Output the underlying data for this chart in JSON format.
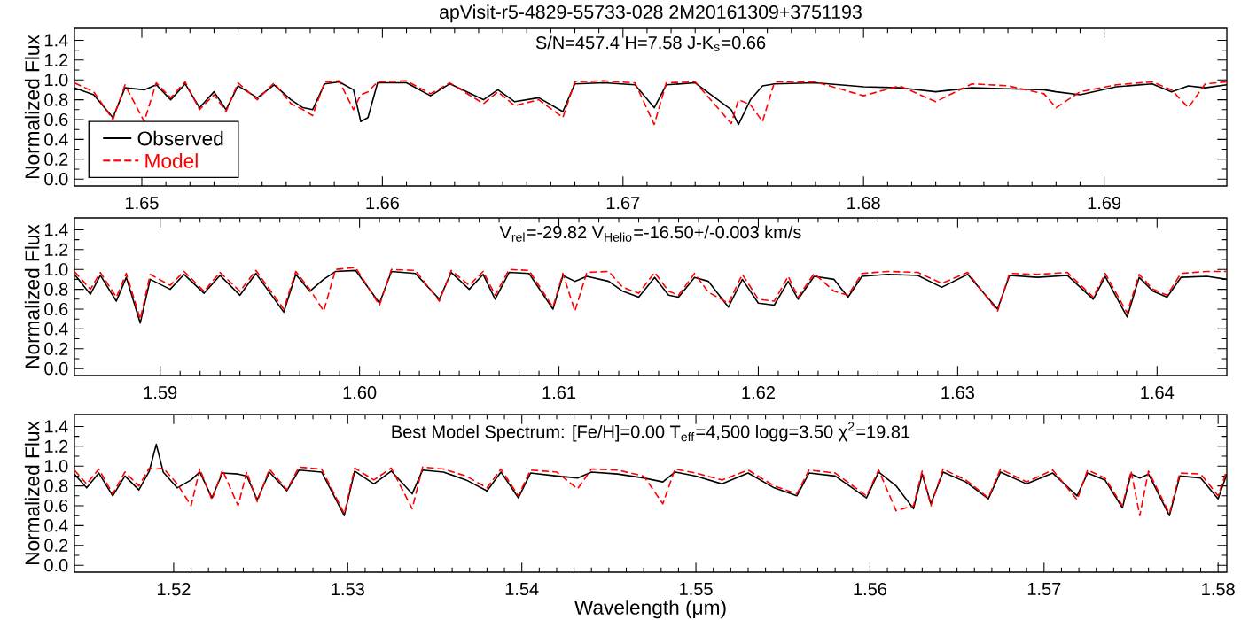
{
  "chart_data": [
    {
      "type": "line",
      "title": "apVisit-r5-4829-55733-028  2M20161309+3751193",
      "ylabel": "Normalized Flux",
      "annotations": [
        "S/N=457.4 H=7.58 J-K$_{s}$=0.66"
      ],
      "legend": "bottom left",
      "xlim": [
        1.6472,
        1.6951
      ],
      "xticks": [
        1.65,
        1.66,
        1.67,
        1.68,
        1.69
      ],
      "ylim": [
        -0.07,
        1.52
      ],
      "yticks": [
        {
          "value": 0,
          "label": "0.0"
        },
        {
          "value": 0.2,
          "label": "0.2"
        },
        {
          "value": 0.4,
          "label": "0.4"
        },
        {
          "value": 0.6,
          "label": "0.6"
        },
        {
          "value": 0.8,
          "label": "0.8"
        },
        {
          "value": 1.0,
          "label": "1.0"
        },
        {
          "value": 1.2,
          "label": "1.2"
        },
        {
          "value": 1.4,
          "label": "1.4"
        }
      ],
      "x": [
        1.6472,
        1.648,
        1.6488,
        1.6493,
        1.6501,
        1.6506,
        1.6512,
        1.6518,
        1.6524,
        1.653,
        1.6535,
        1.654,
        1.6548,
        1.6555,
        1.6562,
        1.6567,
        1.6571,
        1.6576,
        1.6582,
        1.6588,
        1.6591,
        1.6594,
        1.6598,
        1.661,
        1.662,
        1.6628,
        1.6642,
        1.6648,
        1.6655,
        1.6665,
        1.6675,
        1.668,
        1.6692,
        1.6705,
        1.6713,
        1.6718,
        1.673,
        1.6745,
        1.6748,
        1.6753,
        1.6758,
        1.6763,
        1.678,
        1.68,
        1.6815,
        1.683,
        1.6845,
        1.686,
        1.6875,
        1.688,
        1.689,
        1.6905,
        1.692,
        1.6928,
        1.6935,
        1.6942,
        1.6951
      ],
      "series": [
        {
          "name": "Observed",
          "color": "#000000",
          "line_style": "solid",
          "values": [
            0.92,
            0.85,
            0.62,
            0.92,
            0.9,
            0.95,
            0.8,
            0.96,
            0.72,
            0.88,
            0.7,
            0.94,
            0.82,
            0.95,
            0.8,
            0.72,
            0.7,
            0.96,
            0.98,
            0.9,
            0.58,
            0.62,
            0.97,
            0.97,
            0.84,
            0.96,
            0.8,
            0.9,
            0.78,
            0.82,
            0.68,
            0.96,
            0.97,
            0.95,
            0.72,
            0.95,
            0.97,
            0.7,
            0.55,
            0.8,
            0.94,
            0.96,
            0.97,
            0.93,
            0.92,
            0.88,
            0.92,
            0.91,
            0.9,
            0.88,
            0.85,
            0.93,
            0.96,
            0.88,
            0.94,
            0.92,
            0.95
          ]
        },
        {
          "name": "Model",
          "color": "#ff0000",
          "line_style": "dashed",
          "values": [
            0.97,
            0.88,
            0.6,
            0.95,
            0.58,
            0.97,
            0.82,
            0.98,
            0.7,
            0.85,
            0.68,
            0.97,
            0.8,
            0.97,
            0.76,
            0.7,
            0.64,
            0.98,
            0.99,
            0.7,
            0.85,
            0.88,
            0.98,
            0.99,
            0.86,
            0.97,
            0.76,
            0.88,
            0.74,
            0.8,
            0.62,
            0.98,
            0.99,
            0.97,
            0.55,
            0.97,
            0.98,
            0.56,
            0.8,
            0.75,
            0.58,
            0.98,
            0.98,
            0.84,
            0.94,
            0.78,
            0.96,
            0.94,
            0.86,
            0.72,
            0.88,
            0.95,
            0.98,
            0.9,
            0.72,
            0.96,
            0.98
          ]
        }
      ]
    },
    {
      "type": "line",
      "ylabel": "Normalized Flux",
      "annotations": [
        "V$_{rel}$=-29.82  V$_{Helio}$=-16.50+/-0.003 km/s"
      ],
      "xlim": [
        1.5857,
        1.6435
      ],
      "xticks": [
        1.59,
        {
          "value": 1.6,
          "label": "1.60"
        },
        1.61,
        1.62,
        1.63,
        1.64
      ],
      "ylim": [
        -0.07,
        1.52
      ],
      "yticks": [
        {
          "value": 0,
          "label": "0.0"
        },
        {
          "value": 0.2,
          "label": "0.2"
        },
        {
          "value": 0.4,
          "label": "0.4"
        },
        {
          "value": 0.6,
          "label": "0.6"
        },
        {
          "value": 0.8,
          "label": "0.8"
        },
        {
          "value": 1.0,
          "label": "1.0"
        },
        {
          "value": 1.2,
          "label": "1.2"
        },
        {
          "value": 1.4,
          "label": "1.4"
        }
      ],
      "x": [
        1.5857,
        1.5865,
        1.587,
        1.5878,
        1.5883,
        1.589,
        1.5895,
        1.5905,
        1.5912,
        1.5922,
        1.593,
        1.594,
        1.5948,
        1.5962,
        1.5968,
        1.5975,
        1.5982,
        1.5988,
        1.5998,
        1.601,
        1.6016,
        1.6028,
        1.604,
        1.6046,
        1.6055,
        1.6062,
        1.6068,
        1.6075,
        1.6085,
        1.6097,
        1.6102,
        1.6108,
        1.6114,
        1.6125,
        1.6132,
        1.614,
        1.6148,
        1.6155,
        1.616,
        1.6168,
        1.6175,
        1.6185,
        1.6192,
        1.62,
        1.6208,
        1.6215,
        1.622,
        1.6228,
        1.6238,
        1.6245,
        1.6252,
        1.6265,
        1.628,
        1.6292,
        1.6305,
        1.632,
        1.6326,
        1.634,
        1.6355,
        1.6368,
        1.6374,
        1.6385,
        1.6391,
        1.6398,
        1.6405,
        1.6412,
        1.6425,
        1.6435
      ],
      "series": [
        {
          "color": "#000000",
          "line_style": "solid",
          "values": [
            0.95,
            0.75,
            0.94,
            0.68,
            0.92,
            0.46,
            0.9,
            0.8,
            0.95,
            0.76,
            0.94,
            0.74,
            0.96,
            0.57,
            0.95,
            0.78,
            0.9,
            0.98,
            0.99,
            0.66,
            0.98,
            0.96,
            0.7,
            0.97,
            0.8,
            0.95,
            0.7,
            0.97,
            0.96,
            0.6,
            0.94,
            0.88,
            0.93,
            0.88,
            0.78,
            0.72,
            0.92,
            0.74,
            0.72,
            0.92,
            0.88,
            0.62,
            0.9,
            0.66,
            0.64,
            0.88,
            0.7,
            0.93,
            0.9,
            0.72,
            0.93,
            0.95,
            0.94,
            0.82,
            0.95,
            0.6,
            0.94,
            0.92,
            0.94,
            0.7,
            0.93,
            0.52,
            0.92,
            0.78,
            0.72,
            0.92,
            0.93,
            0.9
          ]
        },
        {
          "color": "#ff0000",
          "line_style": "dashed",
          "values": [
            0.98,
            0.8,
            0.97,
            0.72,
            0.96,
            0.5,
            0.95,
            0.84,
            0.98,
            0.78,
            0.97,
            0.78,
            0.99,
            0.6,
            0.98,
            0.8,
            0.58,
            1.0,
            1.02,
            0.64,
            1.0,
            0.99,
            0.68,
            0.99,
            0.84,
            0.98,
            0.74,
            1.0,
            0.99,
            0.62,
            0.96,
            0.58,
            0.97,
            0.98,
            0.82,
            0.76,
            0.97,
            0.78,
            0.74,
            0.96,
            0.77,
            0.66,
            0.95,
            0.7,
            0.68,
            0.93,
            0.72,
            0.96,
            0.78,
            0.74,
            0.96,
            0.98,
            0.97,
            0.86,
            0.97,
            0.58,
            0.96,
            0.95,
            0.97,
            0.72,
            0.96,
            0.56,
            0.95,
            0.8,
            0.74,
            0.96,
            0.98,
            0.98
          ]
        }
      ]
    },
    {
      "type": "line",
      "xlabel": "Wavelength (μm)",
      "ylabel": "Normalized Flux",
      "annotations": [
        "Best Model Spectrum: [Fe/H]=0.00 T$_{eff}$=4,500 logg=3.50  χ$^{2}$=19.81"
      ],
      "xlim": [
        1.5143,
        1.5805
      ],
      "xticks": [
        1.52,
        1.53,
        1.54,
        1.55,
        1.56,
        1.57,
        1.58
      ],
      "ylim": [
        -0.07,
        1.52
      ],
      "yticks": [
        {
          "value": 0,
          "label": "0.0"
        },
        {
          "value": 0.2,
          "label": "0.2"
        },
        {
          "value": 0.4,
          "label": "0.4"
        },
        {
          "value": 0.6,
          "label": "0.6"
        },
        {
          "value": 0.8,
          "label": "0.8"
        },
        {
          "value": 1.0,
          "label": "1.0"
        },
        {
          "value": 1.2,
          "label": "1.2"
        },
        {
          "value": 1.4,
          "label": "1.4"
        }
      ],
      "x": [
        1.5143,
        1.515,
        1.5157,
        1.5165,
        1.5172,
        1.518,
        1.5186,
        1.519,
        1.5194,
        1.5202,
        1.521,
        1.5215,
        1.5222,
        1.5228,
        1.5237,
        1.5242,
        1.5248,
        1.5255,
        1.5265,
        1.5272,
        1.5285,
        1.5298,
        1.5304,
        1.5315,
        1.5325,
        1.5337,
        1.5343,
        1.5355,
        1.5368,
        1.538,
        1.5388,
        1.5398,
        1.5405,
        1.542,
        1.5432,
        1.544,
        1.5455,
        1.547,
        1.5481,
        1.5488,
        1.55,
        1.5515,
        1.553,
        1.5545,
        1.5558,
        1.5565,
        1.558,
        1.5598,
        1.5605,
        1.5615,
        1.5625,
        1.563,
        1.5635,
        1.5642,
        1.5655,
        1.5668,
        1.5675,
        1.569,
        1.5705,
        1.5719,
        1.5725,
        1.5735,
        1.5745,
        1.575,
        1.5755,
        1.576,
        1.5772,
        1.5778,
        1.579,
        1.58,
        1.5805
      ],
      "series": [
        {
          "color": "#000000",
          "line_style": "solid",
          "values": [
            0.92,
            0.78,
            0.93,
            0.7,
            0.9,
            0.76,
            0.95,
            1.22,
            0.94,
            0.78,
            0.86,
            0.94,
            0.68,
            0.93,
            0.92,
            0.9,
            0.66,
            0.94,
            0.75,
            0.96,
            0.94,
            0.5,
            0.95,
            0.82,
            0.95,
            0.72,
            0.96,
            0.94,
            0.86,
            0.75,
            0.94,
            0.68,
            0.93,
            0.9,
            0.88,
            0.94,
            0.92,
            0.88,
            0.84,
            0.94,
            0.9,
            0.82,
            0.93,
            0.78,
            0.7,
            0.93,
            0.9,
            0.68,
            0.94,
            0.8,
            0.57,
            0.92,
            0.62,
            0.94,
            0.84,
            0.67,
            0.94,
            0.82,
            0.93,
            0.7,
            0.93,
            0.86,
            0.58,
            0.92,
            0.88,
            0.92,
            0.5,
            0.9,
            0.88,
            0.67,
            0.92
          ]
        },
        {
          "color": "#ff0000",
          "line_style": "dashed",
          "values": [
            0.96,
            0.82,
            0.97,
            0.72,
            0.94,
            0.8,
            0.98,
            0.97,
            0.98,
            0.82,
            0.6,
            0.97,
            0.66,
            0.96,
            0.6,
            0.94,
            0.64,
            0.97,
            0.76,
            0.99,
            0.97,
            0.52,
            0.98,
            0.86,
            0.98,
            0.57,
            0.99,
            0.97,
            0.9,
            0.78,
            0.97,
            0.7,
            0.96,
            0.94,
            0.77,
            0.97,
            0.96,
            0.9,
            0.62,
            0.97,
            0.93,
            0.86,
            0.96,
            0.8,
            0.72,
            0.96,
            0.93,
            0.7,
            0.96,
            0.55,
            0.6,
            0.95,
            0.6,
            0.97,
            0.86,
            0.68,
            0.97,
            0.84,
            0.96,
            0.66,
            0.96,
            0.88,
            0.6,
            0.95,
            0.5,
            0.95,
            0.52,
            0.93,
            0.92,
            0.7,
            0.96
          ]
        }
      ]
    }
  ]
}
